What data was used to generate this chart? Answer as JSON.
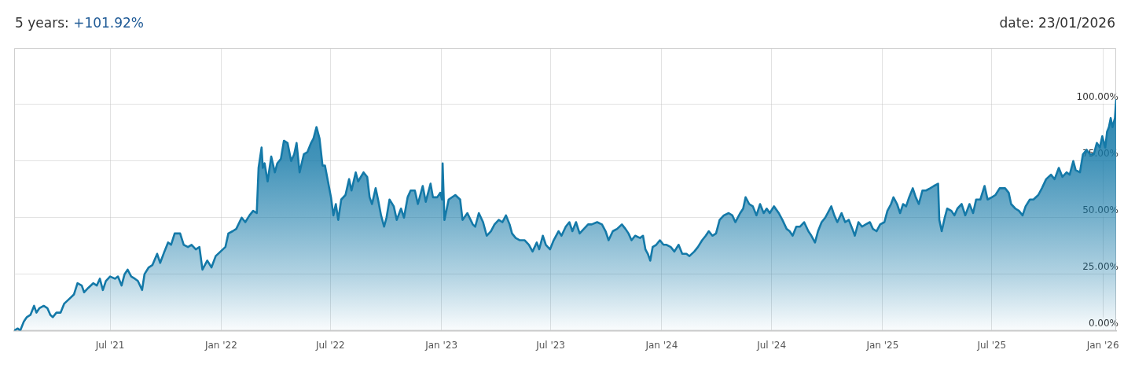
{
  "chart_data": {
    "type": "area",
    "title": "5 years: +101.92%",
    "annotations": [
      "date: 23/01/2026"
    ],
    "xlim": [
      "2021-01-23",
      "2026-01-23"
    ],
    "xticks": [
      {
        "value": "2021-07-01",
        "label": "Jul '21"
      },
      {
        "value": "2022-01-01",
        "label": "Jan '22"
      },
      {
        "value": "2022-07-01",
        "label": "Jul '22"
      },
      {
        "value": "2023-01-01",
        "label": "Jan '23"
      },
      {
        "value": "2023-07-01",
        "label": "Jul '23"
      },
      {
        "value": "2024-01-01",
        "label": "Jan '24"
      },
      {
        "value": "2024-07-01",
        "label": "Jul '24"
      },
      {
        "value": "2025-01-01",
        "label": "Jan '25"
      },
      {
        "value": "2025-07-01",
        "label": "Jul '25"
      },
      {
        "value": "2026-01-01",
        "label": "Jan '26"
      }
    ],
    "ylim": [
      0,
      125
    ],
    "yticks": [
      {
        "value": 0,
        "label": "0.00%"
      },
      {
        "value": 25,
        "label": "25.00%"
      },
      {
        "value": 50,
        "label": "50.00%"
      },
      {
        "value": 75,
        "label": "75.00%"
      },
      {
        "value": 100,
        "label": "100.00%"
      }
    ],
    "grid": true,
    "x": [
      "2021-01-23",
      "2021-01-29",
      "2021-02-02",
      "2021-02-08",
      "2021-02-13",
      "2021-02-19",
      "2021-02-25",
      "2021-03-01",
      "2021-03-06",
      "2021-03-13",
      "2021-03-19",
      "2021-03-24",
      "2021-03-28",
      "2021-04-03",
      "2021-04-10",
      "2021-04-16",
      "2021-04-24",
      "2021-05-02",
      "2021-05-08",
      "2021-05-15",
      "2021-05-19",
      "2021-05-26",
      "2021-06-03",
      "2021-06-09",
      "2021-06-14",
      "2021-06-19",
      "2021-06-24",
      "2021-07-01",
      "2021-07-09",
      "2021-07-14",
      "2021-07-20",
      "2021-07-25",
      "2021-07-30",
      "2021-08-05",
      "2021-08-11",
      "2021-08-16",
      "2021-08-23",
      "2021-08-27",
      "2021-09-03",
      "2021-09-09",
      "2021-09-17",
      "2021-09-22",
      "2021-09-29",
      "2021-10-05",
      "2021-10-10",
      "2021-10-16",
      "2021-10-25",
      "2021-10-31",
      "2021-11-07",
      "2021-11-13",
      "2021-11-20",
      "2021-11-26",
      "2021-12-01",
      "2021-12-09",
      "2021-12-16",
      "2021-12-23",
      "2021-12-31",
      "2022-01-08",
      "2022-01-13",
      "2022-01-20",
      "2022-01-26",
      "2022-02-04",
      "2022-02-10",
      "2022-02-17",
      "2022-02-23",
      "2022-03-01",
      "2022-03-04",
      "2022-03-09",
      "2022-03-11",
      "2022-03-14",
      "2022-03-19",
      "2022-03-25",
      "2022-03-31",
      "2022-04-04",
      "2022-04-10",
      "2022-04-15",
      "2022-04-21",
      "2022-04-27",
      "2022-05-02",
      "2022-05-06",
      "2022-05-11",
      "2022-05-18",
      "2022-05-24",
      "2022-05-30",
      "2022-06-03",
      "2022-06-08",
      "2022-06-13",
      "2022-06-18",
      "2022-06-22",
      "2022-06-27",
      "2022-07-02",
      "2022-07-06",
      "2022-07-10",
      "2022-07-14",
      "2022-07-19",
      "2022-07-26",
      "2022-08-01",
      "2022-08-05",
      "2022-08-12",
      "2022-08-16",
      "2022-08-25",
      "2022-08-31",
      "2022-09-04",
      "2022-09-08",
      "2022-09-14",
      "2022-09-18",
      "2022-09-23",
      "2022-09-28",
      "2022-10-02",
      "2022-10-07",
      "2022-10-14",
      "2022-10-19",
      "2022-10-26",
      "2022-10-31",
      "2022-11-06",
      "2022-11-11",
      "2022-11-18",
      "2022-11-23",
      "2022-12-01",
      "2022-12-06",
      "2022-12-14",
      "2022-12-18",
      "2022-12-25",
      "2022-12-30",
      "2023-01-02",
      "2023-01-03",
      "2023-01-06",
      "2023-01-13",
      "2023-01-24",
      "2023-02-01",
      "2023-02-05",
      "2023-02-13",
      "2023-02-22",
      "2023-02-26",
      "2023-03-04",
      "2023-03-11",
      "2023-03-17",
      "2023-03-24",
      "2023-03-30",
      "2023-04-06",
      "2023-04-12",
      "2023-04-18",
      "2023-04-24",
      "2023-04-28",
      "2023-05-04",
      "2023-05-11",
      "2023-05-19",
      "2023-05-26",
      "2023-06-01",
      "2023-06-08",
      "2023-06-12",
      "2023-06-18",
      "2023-06-23",
      "2023-06-30",
      "2023-07-06",
      "2023-07-14",
      "2023-07-19",
      "2023-07-26",
      "2023-08-01",
      "2023-08-06",
      "2023-08-12",
      "2023-08-18",
      "2023-08-25",
      "2023-09-01",
      "2023-09-07",
      "2023-09-16",
      "2023-09-24",
      "2023-09-30",
      "2023-10-05",
      "2023-10-12",
      "2023-10-19",
      "2023-10-27",
      "2023-11-02",
      "2023-11-07",
      "2023-11-12",
      "2023-11-18",
      "2023-11-26",
      "2023-12-01",
      "2023-12-05",
      "2023-12-09",
      "2023-12-13",
      "2023-12-17",
      "2023-12-23",
      "2023-12-29",
      "2024-01-04",
      "2024-01-09",
      "2024-01-16",
      "2024-01-22",
      "2024-01-29",
      "2024-02-04",
      "2024-02-11",
      "2024-02-16",
      "2024-02-24",
      "2024-03-01",
      "2024-03-08",
      "2024-03-14",
      "2024-03-19",
      "2024-03-25",
      "2024-03-31",
      "2024-04-06",
      "2024-04-13",
      "2024-04-21",
      "2024-04-27",
      "2024-05-02",
      "2024-05-10",
      "2024-05-15",
      "2024-05-19",
      "2024-05-25",
      "2024-05-31",
      "2024-06-06",
      "2024-06-12",
      "2024-06-18",
      "2024-06-23",
      "2024-06-28",
      "2024-07-05",
      "2024-07-13",
      "2024-07-19",
      "2024-07-26",
      "2024-07-31",
      "2024-08-05",
      "2024-08-11",
      "2024-08-17",
      "2024-08-24",
      "2024-08-31",
      "2024-09-05",
      "2024-09-11",
      "2024-09-16",
      "2024-09-22",
      "2024-09-28",
      "2024-10-02",
      "2024-10-08",
      "2024-10-13",
      "2024-10-18",
      "2024-10-25",
      "2024-10-31",
      "2024-11-06",
      "2024-11-12",
      "2024-11-16",
      "2024-11-22",
      "2024-11-28",
      "2024-12-04",
      "2024-12-11",
      "2024-12-16",
      "2024-12-22",
      "2024-12-28",
      "2025-01-04",
      "2025-01-09",
      "2025-01-15",
      "2025-01-19",
      "2025-01-25",
      "2025-01-30",
      "2025-02-04",
      "2025-02-09",
      "2025-02-14",
      "2025-02-20",
      "2025-02-25",
      "2025-03-02",
      "2025-03-08",
      "2025-03-14",
      "2025-03-21",
      "2025-03-27",
      "2025-04-03",
      "2025-04-05",
      "2025-04-09",
      "2025-04-14",
      "2025-04-18",
      "2025-04-25",
      "2025-04-30",
      "2025-05-05",
      "2025-05-12",
      "2025-05-18",
      "2025-05-25",
      "2025-05-31",
      "2025-06-05",
      "2025-06-12",
      "2025-06-19",
      "2025-06-24",
      "2025-07-01",
      "2025-07-07",
      "2025-07-14",
      "2025-07-23",
      "2025-07-29",
      "2025-08-02",
      "2025-08-09",
      "2025-08-15",
      "2025-08-21",
      "2025-08-26",
      "2025-09-02",
      "2025-09-08",
      "2025-09-16",
      "2025-09-22",
      "2025-09-29",
      "2025-10-07",
      "2025-10-13",
      "2025-10-20",
      "2025-10-26",
      "2025-11-02",
      "2025-11-07",
      "2025-11-13",
      "2025-11-17",
      "2025-11-24",
      "2025-11-29",
      "2025-12-05",
      "2025-12-11",
      "2025-12-17",
      "2025-12-22",
      "2025-12-27",
      "2025-12-31",
      "2026-01-05",
      "2026-01-08",
      "2026-01-11",
      "2026-01-14",
      "2026-01-17",
      "2026-01-21",
      "2026-01-23"
    ],
    "series": [
      {
        "color": "#1479a8",
        "values": [
          0,
          1,
          0,
          4,
          6,
          7,
          11,
          8,
          10,
          11,
          10,
          7,
          6,
          8,
          8,
          12,
          14,
          16,
          21,
          20,
          17,
          19,
          21,
          20,
          23,
          18,
          22,
          24,
          23,
          24,
          20,
          25,
          27,
          24,
          23,
          22,
          18,
          25,
          28,
          29,
          34,
          30,
          35,
          39,
          38,
          43,
          43,
          38,
          37,
          38,
          36,
          37,
          27,
          31,
          28,
          33,
          35,
          37,
          43,
          44,
          45,
          50,
          48,
          51,
          53,
          52,
          72,
          81,
          72,
          74,
          66,
          77,
          70,
          74,
          76,
          84,
          83,
          75,
          78,
          83,
          70,
          78,
          79,
          83,
          85,
          90,
          85,
          73,
          73,
          66,
          59,
          51,
          56,
          49,
          58,
          60,
          67,
          62,
          70,
          66,
          70,
          68,
          59,
          56,
          63,
          58,
          51,
          46,
          50,
          58,
          55,
          49,
          54,
          50,
          59,
          62,
          62,
          56,
          64,
          57,
          65,
          59,
          59,
          61,
          58,
          74,
          49,
          58,
          60,
          58,
          49,
          52,
          47,
          46,
          52,
          48,
          42,
          44,
          47,
          49,
          48,
          51,
          47,
          43,
          41,
          40,
          40,
          38,
          35,
          39,
          36,
          42,
          38,
          36,
          40,
          44,
          42,
          46,
          48,
          44,
          48,
          43,
          45,
          47,
          47,
          48,
          47,
          44,
          40,
          44,
          45,
          47,
          45,
          43,
          40,
          42,
          41,
          42,
          36,
          34,
          31,
          37,
          38,
          40,
          38,
          38,
          37,
          35,
          38,
          34,
          34,
          33,
          35,
          37,
          40,
          42,
          44,
          42,
          43,
          49,
          51,
          52,
          51,
          48,
          52,
          54,
          59,
          56,
          55,
          51,
          56,
          52,
          54,
          52,
          55,
          52,
          49,
          45,
          44,
          42,
          46,
          46,
          48,
          44,
          42,
          39,
          44,
          48,
          50,
          52,
          55,
          51,
          48,
          52,
          48,
          49,
          45,
          42,
          48,
          46,
          47,
          48,
          45,
          44,
          47,
          48,
          53,
          56,
          59,
          56,
          52,
          56,
          55,
          59,
          63,
          59,
          56,
          62,
          62,
          63,
          64,
          65,
          49,
          44,
          50,
          54,
          53,
          51,
          54,
          56,
          51,
          56,
          52,
          58,
          58,
          64,
          58,
          59,
          60,
          63,
          63,
          61,
          56,
          54,
          53,
          51,
          55,
          58,
          58,
          60,
          63,
          67,
          69,
          67,
          72,
          68,
          70,
          69,
          75,
          71,
          70,
          78,
          80,
          78,
          78,
          83,
          81,
          86,
          81,
          88,
          90,
          94,
          90,
          94,
          101.92
        ]
      }
    ]
  }
}
